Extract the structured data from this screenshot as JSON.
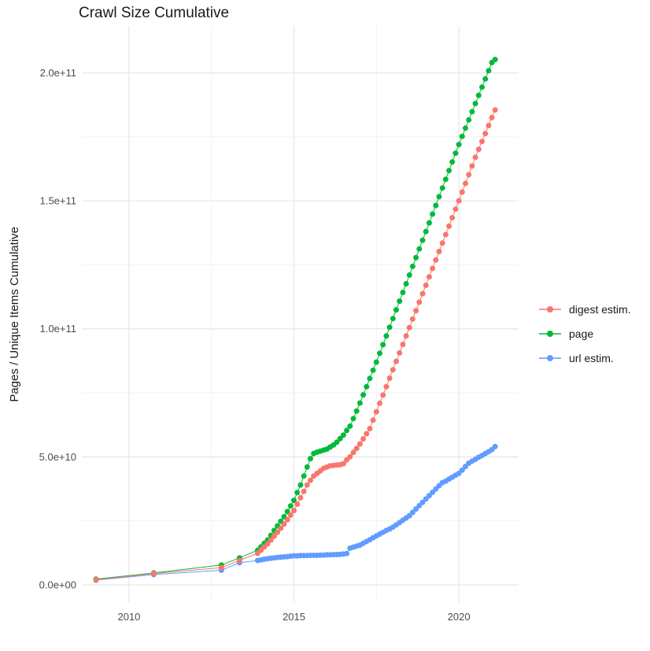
{
  "chart_data": {
    "type": "scatter",
    "title": "Crawl Size Cumulative",
    "xlabel": "",
    "ylabel": "Pages / Unique Items Cumulative",
    "value_unit": "1e9 (values stored in billions)",
    "legend_position": "right",
    "grid": "on",
    "background": "#ffffff",
    "grid_major_color": "#e8e8e8",
    "grid_minor_color": "#f0f0f0",
    "x_domain": [
      2008.57,
      2021.81
    ],
    "y_domain": [
      -6.8,
      218.3
    ],
    "x_ticks": [
      {
        "v": 2010,
        "label": "2010"
      },
      {
        "v": 2015,
        "label": "2015"
      },
      {
        "v": 2020,
        "label": "2020"
      }
    ],
    "x_minor": [
      2012.5,
      2017.5
    ],
    "y_ticks": [
      {
        "v": 0,
        "label": "0.0e+00"
      },
      {
        "v": 50,
        "label": "5.0e+10"
      },
      {
        "v": 100,
        "label": "1.0e+11"
      },
      {
        "v": 150,
        "label": "1.5e+11"
      },
      {
        "v": 200,
        "label": "2.0e+11"
      }
    ],
    "y_minor": [
      25,
      75,
      125,
      175
    ],
    "series": [
      {
        "name": "digest estim.",
        "color": "#F8766D",
        "z": 3,
        "points": [
          [
            2009.0,
            2.0
          ],
          [
            2010.75,
            4.4
          ],
          [
            2012.8,
            6.7
          ],
          [
            2013.35,
            9.5
          ],
          [
            2013.9,
            12.3
          ],
          [
            2014.0,
            13.5
          ],
          [
            2014.1,
            14.8
          ],
          [
            2014.2,
            16.0
          ],
          [
            2014.3,
            17.5
          ],
          [
            2014.4,
            19.0
          ],
          [
            2014.5,
            20.5
          ],
          [
            2014.6,
            22.1
          ],
          [
            2014.7,
            23.7
          ],
          [
            2014.8,
            25.4
          ],
          [
            2014.9,
            27.2
          ],
          [
            2015.0,
            29.0
          ],
          [
            2015.1,
            31.5
          ],
          [
            2015.2,
            34.0
          ],
          [
            2015.3,
            36.5
          ],
          [
            2015.4,
            39.0
          ],
          [
            2015.5,
            40.8
          ],
          [
            2015.6,
            42.5
          ],
          [
            2015.7,
            43.5
          ],
          [
            2015.8,
            44.5
          ],
          [
            2015.9,
            45.5
          ],
          [
            2016.0,
            46.0
          ],
          [
            2016.1,
            46.5
          ],
          [
            2016.2,
            46.6
          ],
          [
            2016.3,
            46.8
          ],
          [
            2016.4,
            46.9
          ],
          [
            2016.5,
            47.3
          ],
          [
            2016.6,
            48.8
          ],
          [
            2016.7,
            50.0
          ],
          [
            2016.8,
            51.7
          ],
          [
            2016.9,
            53.3
          ],
          [
            2017.0,
            55.0
          ],
          [
            2017.1,
            57.0
          ],
          [
            2017.2,
            59.0
          ],
          [
            2017.3,
            61.0
          ],
          [
            2017.4,
            64.3
          ],
          [
            2017.5,
            67.6
          ],
          [
            2017.6,
            70.9
          ],
          [
            2017.7,
            74.1
          ],
          [
            2017.8,
            77.4
          ],
          [
            2017.9,
            80.7
          ],
          [
            2018.0,
            84.0
          ],
          [
            2018.1,
            87.3
          ],
          [
            2018.2,
            90.6
          ],
          [
            2018.3,
            93.9
          ],
          [
            2018.4,
            97.2
          ],
          [
            2018.5,
            100.5
          ],
          [
            2018.6,
            103.8
          ],
          [
            2018.7,
            107.1
          ],
          [
            2018.8,
            110.4
          ],
          [
            2018.9,
            113.7
          ],
          [
            2019.0,
            117.0
          ],
          [
            2019.1,
            120.3
          ],
          [
            2019.2,
            123.6
          ],
          [
            2019.3,
            126.9
          ],
          [
            2019.4,
            130.2
          ],
          [
            2019.5,
            133.5
          ],
          [
            2019.6,
            136.8
          ],
          [
            2019.7,
            140.1
          ],
          [
            2019.8,
            143.4
          ],
          [
            2019.9,
            146.7
          ],
          [
            2020.0,
            150.0
          ],
          [
            2020.1,
            153.4
          ],
          [
            2020.2,
            156.8
          ],
          [
            2020.3,
            160.2
          ],
          [
            2020.4,
            163.6
          ],
          [
            2020.5,
            167.0
          ],
          [
            2020.6,
            170.1
          ],
          [
            2020.7,
            173.2
          ],
          [
            2020.8,
            176.3
          ],
          [
            2020.9,
            179.4
          ],
          [
            2021.0,
            182.5
          ],
          [
            2021.1,
            185.5
          ]
        ]
      },
      {
        "name": "page",
        "color": "#00BA38",
        "z": 1,
        "points": [
          [
            2009.0,
            2.2
          ],
          [
            2010.75,
            4.6
          ],
          [
            2012.8,
            7.7
          ],
          [
            2013.35,
            10.5
          ],
          [
            2013.9,
            13.5
          ],
          [
            2014.0,
            14.8
          ],
          [
            2014.1,
            16.2
          ],
          [
            2014.2,
            17.5
          ],
          [
            2014.3,
            19.3
          ],
          [
            2014.4,
            21.2
          ],
          [
            2014.5,
            23.0
          ],
          [
            2014.6,
            24.8
          ],
          [
            2014.7,
            26.6
          ],
          [
            2014.8,
            28.6
          ],
          [
            2014.9,
            30.8
          ],
          [
            2015.0,
            33.0
          ],
          [
            2015.1,
            36.0
          ],
          [
            2015.2,
            39.0
          ],
          [
            2015.3,
            42.5
          ],
          [
            2015.4,
            46.0
          ],
          [
            2015.5,
            49.3
          ],
          [
            2015.6,
            51.3
          ],
          [
            2015.7,
            51.8
          ],
          [
            2015.8,
            52.2
          ],
          [
            2015.9,
            52.6
          ],
          [
            2016.0,
            53.0
          ],
          [
            2016.1,
            53.8
          ],
          [
            2016.2,
            54.6
          ],
          [
            2016.3,
            55.7
          ],
          [
            2016.4,
            57.1
          ],
          [
            2016.5,
            58.5
          ],
          [
            2016.6,
            60.3
          ],
          [
            2016.7,
            62.0
          ],
          [
            2016.8,
            64.9
          ],
          [
            2016.9,
            67.9
          ],
          [
            2017.0,
            71.0
          ],
          [
            2017.1,
            74.2
          ],
          [
            2017.2,
            77.4
          ],
          [
            2017.3,
            80.6
          ],
          [
            2017.4,
            83.8
          ],
          [
            2017.5,
            87.0
          ],
          [
            2017.6,
            90.4
          ],
          [
            2017.7,
            93.8
          ],
          [
            2017.8,
            97.2
          ],
          [
            2017.9,
            100.6
          ],
          [
            2018.0,
            104.0
          ],
          [
            2018.1,
            107.4
          ],
          [
            2018.2,
            110.8
          ],
          [
            2018.3,
            114.2
          ],
          [
            2018.4,
            117.6
          ],
          [
            2018.5,
            121.0
          ],
          [
            2018.6,
            124.4
          ],
          [
            2018.7,
            127.8
          ],
          [
            2018.8,
            131.2
          ],
          [
            2018.9,
            134.6
          ],
          [
            2019.0,
            138.0
          ],
          [
            2019.1,
            141.4
          ],
          [
            2019.2,
            144.8
          ],
          [
            2019.3,
            148.2
          ],
          [
            2019.4,
            151.6
          ],
          [
            2019.5,
            155.0
          ],
          [
            2019.6,
            158.4
          ],
          [
            2019.7,
            161.8
          ],
          [
            2019.8,
            165.2
          ],
          [
            2019.9,
            168.6
          ],
          [
            2020.0,
            172.0
          ],
          [
            2020.1,
            175.2
          ],
          [
            2020.2,
            178.4
          ],
          [
            2020.3,
            181.6
          ],
          [
            2020.4,
            184.8
          ],
          [
            2020.5,
            188.0
          ],
          [
            2020.6,
            191.2
          ],
          [
            2020.7,
            194.4
          ],
          [
            2020.8,
            197.6
          ],
          [
            2020.9,
            200.8
          ],
          [
            2021.0,
            204.0
          ],
          [
            2021.1,
            205.2
          ]
        ]
      },
      {
        "name": "url estim.",
        "color": "#619CFF",
        "z": 2,
        "points": [
          [
            2009.0,
            1.8
          ],
          [
            2010.75,
            4.0
          ],
          [
            2012.8,
            5.7
          ],
          [
            2013.35,
            8.6
          ],
          [
            2013.9,
            9.5
          ],
          [
            2014.0,
            9.7
          ],
          [
            2014.1,
            10.0
          ],
          [
            2014.2,
            10.2
          ],
          [
            2014.3,
            10.4
          ],
          [
            2014.4,
            10.5
          ],
          [
            2014.5,
            10.7
          ],
          [
            2014.6,
            10.8
          ],
          [
            2014.7,
            10.9
          ],
          [
            2014.8,
            11.0
          ],
          [
            2014.9,
            11.2
          ],
          [
            2015.0,
            11.3
          ],
          [
            2015.1,
            11.3
          ],
          [
            2015.2,
            11.4
          ],
          [
            2015.3,
            11.4
          ],
          [
            2015.4,
            11.4
          ],
          [
            2015.5,
            11.5
          ],
          [
            2015.6,
            11.5
          ],
          [
            2015.7,
            11.5
          ],
          [
            2015.8,
            11.6
          ],
          [
            2015.9,
            11.6
          ],
          [
            2016.0,
            11.7
          ],
          [
            2016.1,
            11.7
          ],
          [
            2016.2,
            11.8
          ],
          [
            2016.3,
            11.8
          ],
          [
            2016.4,
            11.9
          ],
          [
            2016.5,
            12.0
          ],
          [
            2016.6,
            12.2
          ],
          [
            2016.7,
            14.3
          ],
          [
            2016.8,
            14.7
          ],
          [
            2016.9,
            15.1
          ],
          [
            2017.0,
            15.5
          ],
          [
            2017.1,
            16.2
          ],
          [
            2017.2,
            16.9
          ],
          [
            2017.3,
            17.6
          ],
          [
            2017.4,
            18.4
          ],
          [
            2017.5,
            19.1
          ],
          [
            2017.6,
            19.8
          ],
          [
            2017.7,
            20.5
          ],
          [
            2017.8,
            21.2
          ],
          [
            2017.9,
            21.8
          ],
          [
            2018.0,
            22.5
          ],
          [
            2018.1,
            23.4
          ],
          [
            2018.2,
            24.3
          ],
          [
            2018.3,
            25.2
          ],
          [
            2018.4,
            26.1
          ],
          [
            2018.5,
            27.0
          ],
          [
            2018.6,
            28.3
          ],
          [
            2018.7,
            29.6
          ],
          [
            2018.8,
            30.9
          ],
          [
            2018.9,
            32.2
          ],
          [
            2019.0,
            33.5
          ],
          [
            2019.1,
            34.8
          ],
          [
            2019.2,
            36.1
          ],
          [
            2019.3,
            37.4
          ],
          [
            2019.4,
            38.7
          ],
          [
            2019.5,
            39.9
          ],
          [
            2019.6,
            40.5
          ],
          [
            2019.7,
            41.3
          ],
          [
            2019.8,
            42.0
          ],
          [
            2019.9,
            42.8
          ],
          [
            2020.0,
            43.5
          ],
          [
            2020.1,
            44.8
          ],
          [
            2020.2,
            46.2
          ],
          [
            2020.3,
            47.5
          ],
          [
            2020.4,
            48.3
          ],
          [
            2020.5,
            49.0
          ],
          [
            2020.6,
            49.8
          ],
          [
            2020.7,
            50.5
          ],
          [
            2020.8,
            51.3
          ],
          [
            2020.9,
            52.0
          ],
          [
            2021.0,
            52.8
          ],
          [
            2021.1,
            54.0
          ]
        ]
      }
    ]
  }
}
